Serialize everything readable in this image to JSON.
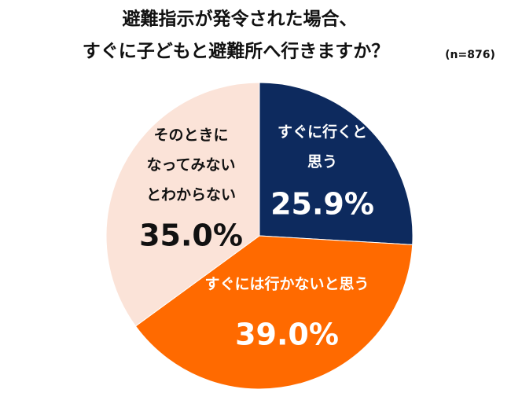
{
  "chart_data": {
    "type": "pie",
    "title": [
      "避難指示が発令された場合、",
      "すぐに子どもと避難所へ行きますか？"
    ],
    "subtitle": "(n=876)",
    "categories": [
      "すぐに行くと思う",
      "すぐには行かないと思う",
      "そのときになってみないとわからない"
    ],
    "values": [
      25.9,
      39.0,
      35.0
    ],
    "value_labels": [
      "25.9%",
      "39.0%",
      "35.0%"
    ],
    "colors": [
      "#0d2a5e",
      "#ff6a00",
      "#fbe3d8"
    ]
  }
}
